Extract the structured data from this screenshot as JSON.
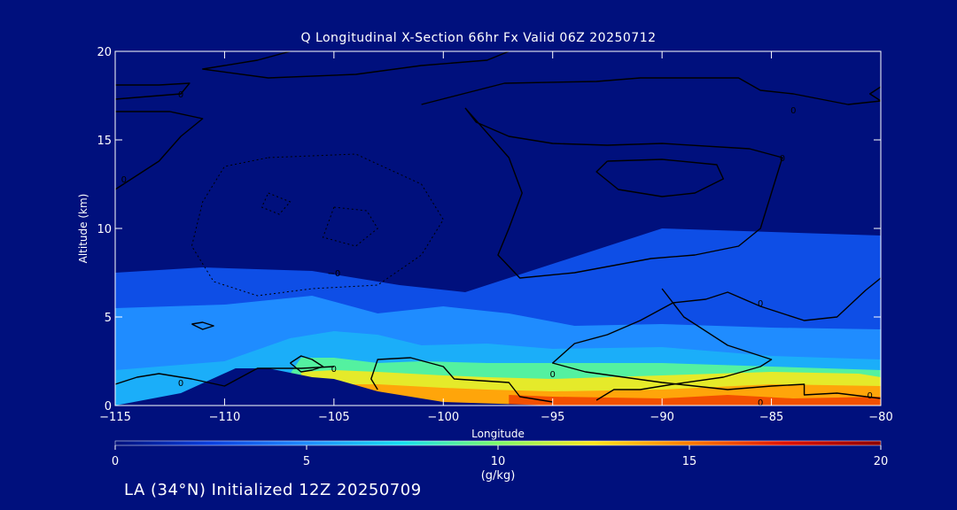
{
  "chart_data": {
    "type": "heatmap",
    "title": "Q Longitudinal X-Section 66hr  Fx Valid 06Z 20250712",
    "xlabel": "Longitude",
    "ylabel": "Altitude (km)",
    "xlim": [
      -115,
      -80
    ],
    "ylim": [
      0,
      20
    ],
    "x_ticks": [
      -115,
      -110,
      -105,
      -100,
      -95,
      -90,
      -85,
      -80
    ],
    "x_tick_labels": [
      "−115",
      "−110",
      "−105",
      "−100",
      "−95",
      "−90",
      "−85",
      "−80"
    ],
    "y_ticks": [
      0,
      5,
      10,
      15,
      20
    ],
    "y_tick_labels": [
      "0",
      "5",
      "10",
      "15",
      "20"
    ],
    "colorbar": {
      "label": "(g/kg)",
      "min": 0,
      "max": 20,
      "ticks": [
        0,
        5,
        10,
        15,
        20
      ],
      "tick_labels": [
        "0",
        "5",
        "10",
        "15",
        "20"
      ],
      "colormap": [
        "#00107d",
        "#0a3fe0",
        "#1f8cff",
        "#16e0f0",
        "#7dfc6a",
        "#ffe61a",
        "#ff7a00",
        "#e01000",
        "#8c0000"
      ]
    },
    "shaded_field": {
      "description_units": "specific humidity g/kg, approximate bands",
      "layers": [
        {
          "q": 3,
          "points": [
            [
              -115,
              0
            ],
            [
              -115,
              7.5
            ],
            [
              -111,
              7.8
            ],
            [
              -106,
              7.6
            ],
            [
              -102,
              6.8
            ],
            [
              -99,
              6.4
            ],
            [
              -95,
              8
            ],
            [
              -90,
              10
            ],
            [
              -85,
              9.8
            ],
            [
              -80,
              9.6
            ],
            [
              -80,
              0
            ]
          ]
        },
        {
          "q": 5,
          "points": [
            [
              -115,
              0
            ],
            [
              -115,
              5.5
            ],
            [
              -110,
              5.7
            ],
            [
              -106,
              6.2
            ],
            [
              -103,
              5.2
            ],
            [
              -100,
              5.6
            ],
            [
              -97,
              5.2
            ],
            [
              -94,
              4.5
            ],
            [
              -90,
              4.6
            ],
            [
              -85,
              4.4
            ],
            [
              -80,
              4.3
            ],
            [
              -80,
              0
            ]
          ]
        },
        {
          "q": 6,
          "points": [
            [
              -115,
              0
            ],
            [
              -115,
              2
            ],
            [
              -110,
              2.5
            ],
            [
              -107,
              3.8
            ],
            [
              -105,
              4.2
            ],
            [
              -103,
              4
            ],
            [
              -101,
              3.4
            ],
            [
              -98,
              3.5
            ],
            [
              -95,
              3.2
            ],
            [
              -90,
              3.3
            ],
            [
              -85,
              2.8
            ],
            [
              -80,
              2.6
            ],
            [
              -80,
              0
            ]
          ]
        },
        {
          "q": 9,
          "points": [
            [
              -107,
              1.8
            ],
            [
              -106.5,
              2.7
            ],
            [
              -105,
              2.7
            ],
            [
              -103,
              2.4
            ],
            [
              -101,
              2.5
            ],
            [
              -98,
              2.4
            ],
            [
              -95,
              2.4
            ],
            [
              -90,
              2.4
            ],
            [
              -85,
              2.2
            ],
            [
              -80,
              2.0
            ],
            [
              -80,
              0
            ],
            [
              -107,
              0
            ]
          ]
        },
        {
          "q": 12,
          "points": [
            [
              -106.5,
              1.9
            ],
            [
              -105,
              2.0
            ],
            [
              -103,
              1.9
            ],
            [
              -100,
              1.7
            ],
            [
              -98,
              1.6
            ],
            [
              -95,
              1.5
            ],
            [
              -90,
              1.7
            ],
            [
              -85,
              1.9
            ],
            [
              -81,
              1.8
            ],
            [
              -80,
              1.6
            ],
            [
              -80,
              0
            ],
            [
              -106.5,
              0
            ]
          ]
        },
        {
          "q": 14,
          "points": [
            [
              -105.2,
              1.2
            ],
            [
              -103,
              1.2
            ],
            [
              -100,
              1.0
            ],
            [
              -98,
              0.9
            ],
            [
              -95,
              0.8
            ],
            [
              -90,
              0.9
            ],
            [
              -85,
              1.2
            ],
            [
              -80,
              1.1
            ],
            [
              -80,
              0
            ],
            [
              -105.2,
              0
            ]
          ]
        },
        {
          "q": 16,
          "points": [
            [
              -97,
              0.6
            ],
            [
              -95,
              0.5
            ],
            [
              -90,
              0.4
            ],
            [
              -87,
              0.6
            ],
            [
              -84,
              0.4
            ],
            [
              -80,
              0.5
            ],
            [
              -80,
              0
            ],
            [
              -97,
              0
            ]
          ]
        }
      ],
      "terrain": [
        [
          -115,
          0
        ],
        [
          -112,
          0.7
        ],
        [
          -109.5,
          2.1
        ],
        [
          -108,
          2.1
        ],
        [
          -106,
          1.6
        ],
        [
          -105,
          1.5
        ],
        [
          -103,
          0.8
        ],
        [
          -100,
          0.2
        ],
        [
          -95,
          0
        ],
        [
          -80,
          0
        ]
      ]
    },
    "contours": [
      {
        "label": "0",
        "points": [
          [
            -107,
            20
          ],
          [
            -108.5,
            19.5
          ],
          [
            -111,
            19
          ],
          [
            -108,
            18.5
          ],
          [
            -104,
            18.7
          ],
          [
            -101,
            19.2
          ],
          [
            -98,
            19.5
          ],
          [
            -97,
            20
          ]
        ]
      },
      {
        "label": "0",
        "points": [
          [
            -115,
            18.1
          ],
          [
            -113,
            18.1
          ],
          [
            -111.6,
            18.2
          ],
          [
            -112,
            17.6
          ],
          [
            -115,
            17.3
          ]
        ]
      },
      {
        "label": "0",
        "points": [
          [
            -115,
            16.6
          ],
          [
            -112.5,
            16.6
          ],
          [
            -111,
            16.2
          ],
          [
            -112,
            15.2
          ],
          [
            -113,
            13.8
          ],
          [
            -115,
            12.2
          ]
        ]
      },
      {
        "label": "0",
        "points": [
          [
            -101,
            17
          ],
          [
            -97.2,
            18.2
          ],
          [
            -93,
            18.3
          ],
          [
            -91,
            18.5
          ],
          [
            -86.5,
            18.5
          ],
          [
            -85.5,
            17.8
          ],
          [
            -84,
            17.6
          ],
          [
            -81.5,
            17
          ],
          [
            -80,
            17.2
          ],
          [
            -80.5,
            17.6
          ],
          [
            -80,
            18
          ]
        ]
      },
      {
        "label": "0",
        "points": [
          [
            -99,
            16.8
          ],
          [
            -98.5,
            16
          ],
          [
            -97,
            15.2
          ],
          [
            -95,
            14.8
          ],
          [
            -92.5,
            14.7
          ],
          [
            -90,
            14.8
          ],
          [
            -86,
            14.5
          ],
          [
            -84.5,
            14
          ],
          [
            -85.5,
            10
          ],
          [
            -86.5,
            9
          ],
          [
            -88.5,
            8.5
          ],
          [
            -90.5,
            8.3
          ],
          [
            -94,
            7.5
          ],
          [
            -96.5,
            7.2
          ],
          [
            -97.5,
            8.5
          ],
          [
            -97,
            10
          ],
          [
            -96.4,
            12
          ],
          [
            -97,
            14
          ],
          [
            -99,
            16.8
          ]
        ]
      },
      {
        "label": "",
        "points": [
          [
            -92.5,
            13.8
          ],
          [
            -90,
            13.9
          ],
          [
            -87.5,
            13.6
          ],
          [
            -87.2,
            12.8
          ],
          [
            -88.5,
            12
          ],
          [
            -90,
            11.8
          ],
          [
            -92,
            12.2
          ],
          [
            -93,
            13.2
          ],
          [
            -92.5,
            13.8
          ]
        ]
      },
      {
        "label": "0",
        "points": [
          [
            -80,
            7.2
          ],
          [
            -80.7,
            6.5
          ],
          [
            -82,
            5
          ],
          [
            -83.5,
            4.8
          ],
          [
            -85.5,
            5.6
          ],
          [
            -87,
            6.4
          ],
          [
            -88,
            6
          ],
          [
            -89.5,
            5.8
          ],
          [
            -91,
            4.8
          ],
          [
            -92.5,
            4
          ],
          [
            -94,
            3.5
          ],
          [
            -95,
            2.4
          ],
          [
            -93.5,
            1.9
          ],
          [
            -90,
            1.3
          ],
          [
            -87,
            0.9
          ],
          [
            -85,
            1.1
          ],
          [
            -83.5,
            1.2
          ],
          [
            -83.5,
            0.6
          ],
          [
            -82,
            0.7
          ],
          [
            -80,
            0.4
          ]
        ]
      },
      {
        "label": "",
        "points": [
          [
            -90,
            6.6
          ],
          [
            -89,
            5
          ],
          [
            -87,
            3.4
          ],
          [
            -85,
            2.6
          ],
          [
            -85.5,
            2.2
          ],
          [
            -87.2,
            1.6
          ],
          [
            -89.5,
            1.2
          ],
          [
            -91,
            0.9
          ],
          [
            -92.2,
            0.9
          ],
          [
            -93,
            0.3
          ]
        ]
      },
      {
        "label": "",
        "points": [
          [
            -115,
            1.2
          ],
          [
            -114,
            1.6
          ],
          [
            -113,
            1.8
          ],
          [
            -111.5,
            1.5
          ],
          [
            -110,
            1.1
          ],
          [
            -108.5,
            2.1
          ],
          [
            -106.5,
            2.1
          ],
          [
            -105,
            2.2
          ]
        ]
      },
      {
        "label": "",
        "points": [
          [
            -107,
            2.4
          ],
          [
            -106.5,
            2.8
          ],
          [
            -106,
            2.6
          ],
          [
            -105.5,
            2.2
          ],
          [
            -106,
            2.0
          ],
          [
            -106.5,
            1.9
          ],
          [
            -107,
            2.4
          ]
        ]
      },
      {
        "label": "",
        "points": [
          [
            -103,
            0.9
          ],
          [
            -103.3,
            1.5
          ],
          [
            -103,
            2.6
          ],
          [
            -101.5,
            2.7
          ],
          [
            -100,
            2.2
          ],
          [
            -99.5,
            1.5
          ],
          [
            -97,
            1.3
          ],
          [
            -96.5,
            0.5
          ],
          [
            -95,
            0.2
          ]
        ]
      },
      {
        "label": "",
        "points": [
          [
            -111.5,
            4.6
          ],
          [
            -111,
            4.7
          ],
          [
            -110.5,
            4.5
          ],
          [
            -111,
            4.3
          ],
          [
            -111.5,
            4.6
          ]
        ]
      }
    ],
    "contour_labels": [
      {
        "text": "0",
        "x": -112,
        "y": 17.6
      },
      {
        "text": "0",
        "x": -114.6,
        "y": 12.8
      },
      {
        "text": "0",
        "x": -84,
        "y": 16.7
      },
      {
        "text": "0",
        "x": -84.5,
        "y": 14
      },
      {
        "text": "0",
        "x": -85.5,
        "y": 5.8
      },
      {
        "text": "0",
        "x": -80.5,
        "y": 0.6
      },
      {
        "text": "0",
        "x": -85.5,
        "y": 0.2
      },
      {
        "text": "0",
        "x": -112,
        "y": 1.3
      },
      {
        "text": "0",
        "x": -105,
        "y": 2.1
      },
      {
        "text": "0",
        "x": -95,
        "y": 1.8
      },
      {
        "text": "−0",
        "x": -105,
        "y": 7.5
      }
    ],
    "dashed_contours": [
      {
        "points": [
          [
            -108,
            14
          ],
          [
            -104,
            14.2
          ],
          [
            -101,
            12.5
          ],
          [
            -100,
            10.5
          ],
          [
            -101,
            8.5
          ],
          [
            -103,
            6.8
          ],
          [
            -106,
            6.6
          ],
          [
            -108.5,
            6.2
          ],
          [
            -110.5,
            7
          ],
          [
            -111.5,
            9
          ],
          [
            -111,
            11.5
          ],
          [
            -110,
            13.5
          ],
          [
            -108,
            14
          ]
        ]
      },
      {
        "points": [
          [
            -105,
            11.2
          ],
          [
            -103.5,
            11
          ],
          [
            -103,
            10
          ],
          [
            -104,
            9
          ],
          [
            -105.5,
            9.5
          ],
          [
            -105,
            11.2
          ]
        ]
      },
      {
        "points": [
          [
            -108,
            12
          ],
          [
            -107,
            11.5
          ],
          [
            -107.5,
            10.8
          ],
          [
            -108.3,
            11.2
          ],
          [
            -108,
            12
          ]
        ]
      }
    ]
  },
  "footer": "LA (34°N) Initialized 12Z 20250709"
}
